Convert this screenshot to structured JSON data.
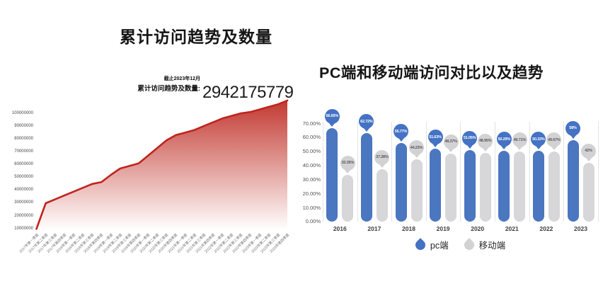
{
  "page": {
    "background": "#ffffff"
  },
  "chart_data": [
    {
      "id": "cumulative-visits",
      "type": "area",
      "title": "累计访问趋势及数量",
      "annotation": {
        "date_note": "截止2023年12月",
        "label": "累计访问趋势及数量:",
        "value": "2942175779"
      },
      "xlabel": "",
      "ylabel": "",
      "ylim": [
        0,
        110000000
      ],
      "grid": false,
      "y_ticks": [
        "100000000",
        "90000000",
        "80000000",
        "70000000",
        "60000000",
        "50000000",
        "40000000",
        "30000000",
        "20000000",
        "10000000"
      ],
      "x": [
        "2017年第一季度",
        "2017年第二季度",
        "2017年第三季度",
        "2017年第四季度",
        "2018年第一季度",
        "2018年第二季度",
        "2018年第三季度",
        "2018年第四季度",
        "2019年第一季度",
        "2019年第二季度",
        "2019年第三季度",
        "2019年第四季度",
        "2020年第一季度",
        "2020年第二季度",
        "2020年第三季度",
        "2020年第四季度",
        "2021年第一季度",
        "2021年第二季度",
        "2021年第三季度",
        "2021年第四季度",
        "2022年第一季度",
        "2022年第二季度",
        "2022年第三季度",
        "2022年第四季度",
        "2023年第一季度",
        "2023年第二季度",
        "2023年第三季度",
        "2023年第四季度"
      ],
      "values": [
        10000000,
        30000000,
        33000000,
        36000000,
        39000000,
        42000000,
        45000000,
        46500000,
        52000000,
        57000000,
        59000000,
        61000000,
        67000000,
        73000000,
        79000000,
        83000000,
        85000000,
        87000000,
        90000000,
        93000000,
        96000000,
        98000000,
        100000000,
        101000000,
        103000000,
        105000000,
        107000000,
        110000000
      ],
      "colors": {
        "line": "#c0241c",
        "area_top": "#c23931",
        "area_bottom": "#ffffff"
      }
    },
    {
      "id": "pc-vs-mobile",
      "type": "bar",
      "title": "PC端和移动端访问对比以及趋势",
      "categories": [
        "2016",
        "2017",
        "2018",
        "2019",
        "2020",
        "2021",
        "2022",
        "2023"
      ],
      "series": [
        {
          "name": "pc端",
          "color": "#4b76c0",
          "balloon_color": "#4472c4",
          "label_color": "#ffffff",
          "values": [
            66.65,
            62.72,
            55.77,
            51.63,
            51.05,
            50.29,
            50.33,
            58
          ],
          "labels": [
            "66.65%",
            "62.72%",
            "55.77%",
            "51.63%",
            "51.05%",
            "50.29%",
            "50.33%",
            "58%"
          ]
        },
        {
          "name": "移动端",
          "color": "#d7d6d8",
          "balloon_color": "#d2d1d3",
          "label_color": "#595959",
          "values": [
            33.35,
            37.28,
            44.23,
            48.37,
            48.95,
            49.71,
            49.67,
            42
          ],
          "labels": [
            "33.35%",
            "37.28%",
            "44.23%",
            "48.37%",
            "48.95%",
            "49.71%",
            "49.67%",
            "42%"
          ]
        }
      ],
      "y_ticks": [
        "70.00%",
        "60.00%",
        "50.00%",
        "40.00%",
        "30.00%",
        "20.00%",
        "10.00%",
        "0.00%"
      ],
      "ylim": [
        0,
        70
      ],
      "grid": false,
      "legend_position": "bottom"
    }
  ]
}
